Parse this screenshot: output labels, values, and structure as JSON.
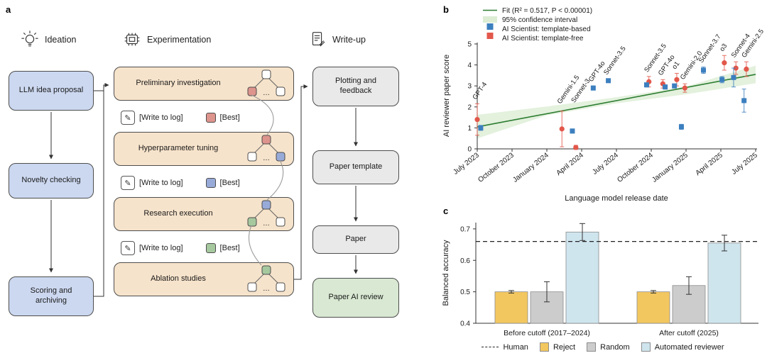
{
  "figure": {
    "panel_a_label": "a",
    "panel_b_label": "b",
    "panel_c_label": "c"
  },
  "palette": {
    "node_red": "#dd948d",
    "node_blue": "#98abd8",
    "node_green": "#a6c89e",
    "node_plain": "#ffffff",
    "ideation_fill": "#ccd8f0",
    "experiment_fill": "#f6e3cb",
    "writeup_fill": "#e9e9e9",
    "review_fill": "#d8e8d2",
    "box_border": "#4d4d4d"
  },
  "panel_a": {
    "columns": [
      {
        "title": "Ideation",
        "icon": "lightbulb-icon"
      },
      {
        "title": "Experimentation",
        "icon": "chip-icon"
      },
      {
        "title": "Write-up",
        "icon": "document-pencil-icon"
      }
    ],
    "ideation_boxes": [
      "LLM idea proposal",
      "Novelty checking",
      "Scoring and archiving"
    ],
    "experiment_boxes": [
      "Preliminary investigation",
      "Hyperparameter tuning",
      "Research execution",
      "Ablation studies"
    ],
    "write_to_log_label": "[Write to log]",
    "best_label": "[Best]",
    "best_colors": [
      "node_red",
      "node_blue",
      "node_green"
    ],
    "trees": [
      {
        "root": "node_plain",
        "children": [
          "node_red",
          "node_plain"
        ]
      },
      {
        "root": "node_red",
        "children": [
          "node_plain",
          "node_blue"
        ]
      },
      {
        "root": "node_blue",
        "children": [
          "node_green",
          "node_plain"
        ]
      },
      {
        "root": "node_green",
        "children": [
          "node_plain",
          "node_plain"
        ]
      }
    ],
    "writeup_boxes": [
      "Plotting and feedback",
      "Paper template",
      "Paper",
      "Paper AI review"
    ]
  },
  "chart_data": [
    {
      "type": "scatter",
      "panel": "b",
      "xlabel": "Language model release date",
      "ylabel": "AI reviewer paper score",
      "ylim": [
        0,
        5
      ],
      "yticks": [
        0,
        1,
        2,
        3,
        4,
        5
      ],
      "x_tick_labels": [
        "July 2023",
        "October 2023",
        "January 2024",
        "April 2024",
        "July 2024",
        "October 2024",
        "January 2025",
        "April 2025",
        "July 2025"
      ],
      "x_months_range": [
        0,
        24
      ],
      "colors": {
        "fit": "#2e7d32",
        "band": "#dcedd4",
        "template_based": "#3c7fbf",
        "template_free": "#e2574a"
      },
      "legend": [
        {
          "swatch": "fit-line",
          "label": "Fit (R² = 0.517, P < 0.00001)"
        },
        {
          "swatch": "ci-band",
          "label": "95% confidence interval"
        },
        {
          "swatch": "blue-square",
          "label": "AI Scientist: template-based"
        },
        {
          "swatch": "red-square",
          "label": "AI Scientist: template-free"
        }
      ],
      "fit_line": {
        "x": [
          0,
          24
        ],
        "y": [
          1.05,
          3.55
        ]
      },
      "ci_upper": [
        [
          0,
          1.62
        ],
        [
          6,
          2.02
        ],
        [
          12,
          2.46
        ],
        [
          18,
          2.97
        ],
        [
          24,
          3.97
        ]
      ],
      "ci_lower": [
        [
          0,
          0.5
        ],
        [
          6,
          1.6
        ],
        [
          12,
          2.17
        ],
        [
          18,
          2.6
        ],
        [
          24,
          3.13
        ]
      ],
      "points": [
        {
          "model": "GPT-4",
          "series": "template-free",
          "x": 0,
          "y": 1.4,
          "err": 0.75,
          "label": true
        },
        {
          "model": "GPT-4",
          "series": "template-based",
          "x": 0.3,
          "y": 1.0,
          "err": 0.12
        },
        {
          "model": "Gemini-1.5",
          "series": "template-free",
          "x": 7.3,
          "y": 0.95,
          "err": 0.85,
          "label": true,
          "label_y": 1.95
        },
        {
          "model": "Sonnet-3",
          "series": "template-free",
          "x": 8.5,
          "y": 0.07,
          "err": 0.1,
          "label": true,
          "label_y": 2.0
        },
        {
          "model": "Sonnet-3",
          "series": "template-based",
          "x": 8.2,
          "y": 0.85,
          "err": 0.1
        },
        {
          "model": "GPT-4o",
          "series": "template-based",
          "x": 10,
          "y": 2.9,
          "err": 0.1,
          "label": true
        },
        {
          "model": "Sonnet-3.5",
          "series": "template-based",
          "x": 11.3,
          "y": 3.25,
          "err": 0.08,
          "label": true
        },
        {
          "model": "Sonnet-3.5",
          "series": "template-free",
          "x": 14.8,
          "y": 3.2,
          "err": 0.25,
          "label": true
        },
        {
          "model": "Sonnet-3.5",
          "series": "template-based",
          "x": 14.6,
          "y": 3.05,
          "err": 0.1
        },
        {
          "model": "GPT-4o",
          "series": "template-free",
          "x": 16,
          "y": 3.1,
          "err": 0.2,
          "label": true
        },
        {
          "model": "GPT-4o",
          "series": "template-based",
          "x": 16.2,
          "y": 2.95,
          "err": 0.1
        },
        {
          "model": "o1",
          "series": "template-free",
          "x": 17.2,
          "y": 3.3,
          "err": 0.3,
          "label": true
        },
        {
          "model": "o1",
          "series": "template-based",
          "x": 17.0,
          "y": 3.0,
          "err": 0.1
        },
        {
          "model": "Gemini-2.0",
          "series": "template-free",
          "x": 17.9,
          "y": 2.9,
          "err": 0.2,
          "label": true
        },
        {
          "model": "Gemini-2.0",
          "series": "template-based",
          "x": 17.6,
          "y": 1.05,
          "err": 0.12
        },
        {
          "model": "Sonnet-3.7",
          "series": "template-based",
          "x": 19.5,
          "y": 3.75,
          "err": 0.15,
          "label": true
        },
        {
          "model": "o3",
          "series": "template-free",
          "x": 21.3,
          "y": 4.1,
          "err": 0.35,
          "label": true
        },
        {
          "model": "o3",
          "series": "template-based",
          "x": 21.1,
          "y": 3.3,
          "err": 0.15
        },
        {
          "model": "Sonnet-4",
          "series": "template-free",
          "x": 22.3,
          "y": 3.85,
          "err": 0.3,
          "label": true
        },
        {
          "model": "Sonnet-4",
          "series": "template-based",
          "x": 22.1,
          "y": 3.4,
          "err": 0.45
        },
        {
          "model": "Gemini-2.5",
          "series": "template-free",
          "x": 23.2,
          "y": 3.8,
          "err": 0.35,
          "label": true
        },
        {
          "model": "Gemini-2.5",
          "series": "template-based",
          "x": 23.0,
          "y": 2.3,
          "err": 0.55
        }
      ]
    },
    {
      "type": "bar",
      "panel": "c",
      "ylabel": "Balanced accuracy",
      "ylim": [
        0.4,
        0.72
      ],
      "yticks": [
        0.4,
        0.5,
        0.6,
        0.7
      ],
      "categories": [
        "Before cutoff (2017–2024)",
        "After cutoff (2025)"
      ],
      "series": [
        {
          "name": "Reject",
          "color": "#f3c75f",
          "values": [
            0.5,
            0.5
          ],
          "errors": [
            0.004,
            0.004
          ]
        },
        {
          "name": "Random",
          "color": "#cccccc",
          "values": [
            0.5,
            0.52
          ],
          "errors": [
            0.032,
            0.028
          ]
        },
        {
          "name": "Automated reviewer",
          "color": "#cfe5ee",
          "values": [
            0.69,
            0.655
          ],
          "errors": [
            0.027,
            0.025
          ]
        }
      ],
      "human_line": {
        "label": "Human",
        "value": 0.66
      },
      "bar_border": "#8c8c8c"
    }
  ]
}
